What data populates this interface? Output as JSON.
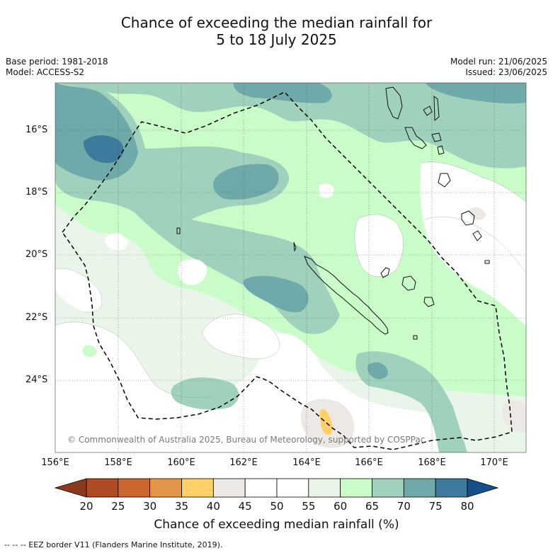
{
  "title": {
    "line1": "Chance of exceeding the median rainfall for",
    "line2": "5 to 18 July 2025"
  },
  "meta": {
    "base_period": "Base period: 1981-2018",
    "model": "Model: ACCESS-S2",
    "model_run": "Model run: 21/06/2025",
    "issued": "Issued: 23/06/2025"
  },
  "axes": {
    "lat_labels": [
      "16°S",
      "18°S",
      "20°S",
      "22°S",
      "24°S"
    ],
    "lon_labels": [
      "156°E",
      "158°E",
      "160°E",
      "162°E",
      "164°E",
      "166°E",
      "168°E",
      "170°E"
    ]
  },
  "colorbar": {
    "title": "Chance of exceeding median rainfall (%)",
    "ticks": [
      "20",
      "25",
      "30",
      "35",
      "40",
      "45",
      "50",
      "55",
      "60",
      "65",
      "70",
      "75",
      "80"
    ],
    "colors": [
      "#b04a24",
      "#cc6630",
      "#e3964a",
      "#fdd06a",
      "#ece9e5",
      "#ffffff",
      "#ffffff",
      "#eaf5ea",
      "#c9fcc9",
      "#9fd1bc",
      "#70a9aa",
      "#3e7a9b"
    ],
    "under_color": "#8c3a1d",
    "over_color": "#174f8a"
  },
  "copyright": "© Commonwealth of Australia 2025, Bureau of Meteorology, supported by COSPPac",
  "footer": "--  --  -- EEZ border V11 (Flanders Marine Institute, 2019)."
}
